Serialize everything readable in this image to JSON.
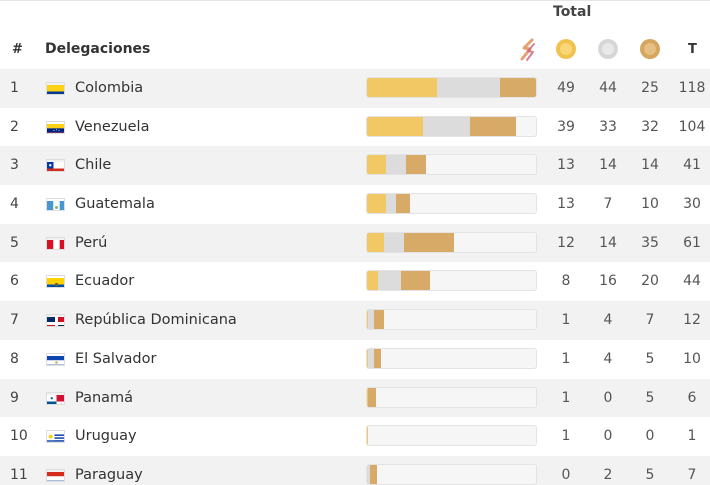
{
  "header": {
    "total_label": "Total",
    "rank_label": "#",
    "delegation_label": "Delegaciones",
    "total_col_label": "T",
    "icons": [
      "brand-logo-icon",
      "gold-medal-icon",
      "silver-medal-icon",
      "bronze-medal-icon"
    ]
  },
  "colors": {
    "gold": "#f2c865",
    "silver": "#dcdcdc",
    "bronze": "#d8aa67",
    "row_alt": "#f2f2f2"
  },
  "rows": [
    {
      "rank": "1",
      "name": "Colombia",
      "flag": "colombia",
      "gold": 49,
      "silver": 44,
      "bronze": 25,
      "total": 118
    },
    {
      "rank": "2",
      "name": "Venezuela",
      "flag": "venezuela",
      "gold": 39,
      "silver": 33,
      "bronze": 32,
      "total": 104
    },
    {
      "rank": "3",
      "name": "Chile",
      "flag": "chile",
      "gold": 13,
      "silver": 14,
      "bronze": 14,
      "total": 41
    },
    {
      "rank": "4",
      "name": "Guatemala",
      "flag": "guatemala",
      "gold": 13,
      "silver": 7,
      "bronze": 10,
      "total": 30
    },
    {
      "rank": "5",
      "name": "Perú",
      "flag": "peru",
      "gold": 12,
      "silver": 14,
      "bronze": 35,
      "total": 61
    },
    {
      "rank": "6",
      "name": "Ecuador",
      "flag": "ecuador",
      "gold": 8,
      "silver": 16,
      "bronze": 20,
      "total": 44
    },
    {
      "rank": "7",
      "name": "República Dominicana",
      "flag": "dominican-republic",
      "gold": 1,
      "silver": 4,
      "bronze": 7,
      "total": 12
    },
    {
      "rank": "8",
      "name": "El Salvador",
      "flag": "el-salvador",
      "gold": 1,
      "silver": 4,
      "bronze": 5,
      "total": 10
    },
    {
      "rank": "9",
      "name": "Panamá",
      "flag": "panama",
      "gold": 1,
      "silver": 0,
      "bronze": 5,
      "total": 6
    },
    {
      "rank": "10",
      "name": "Uruguay",
      "flag": "uruguay",
      "gold": 1,
      "silver": 0,
      "bronze": 0,
      "total": 1
    },
    {
      "rank": "11",
      "name": "Paraguay",
      "flag": "paraguay",
      "gold": 0,
      "silver": 2,
      "bronze": 5,
      "total": 7
    }
  ]
}
